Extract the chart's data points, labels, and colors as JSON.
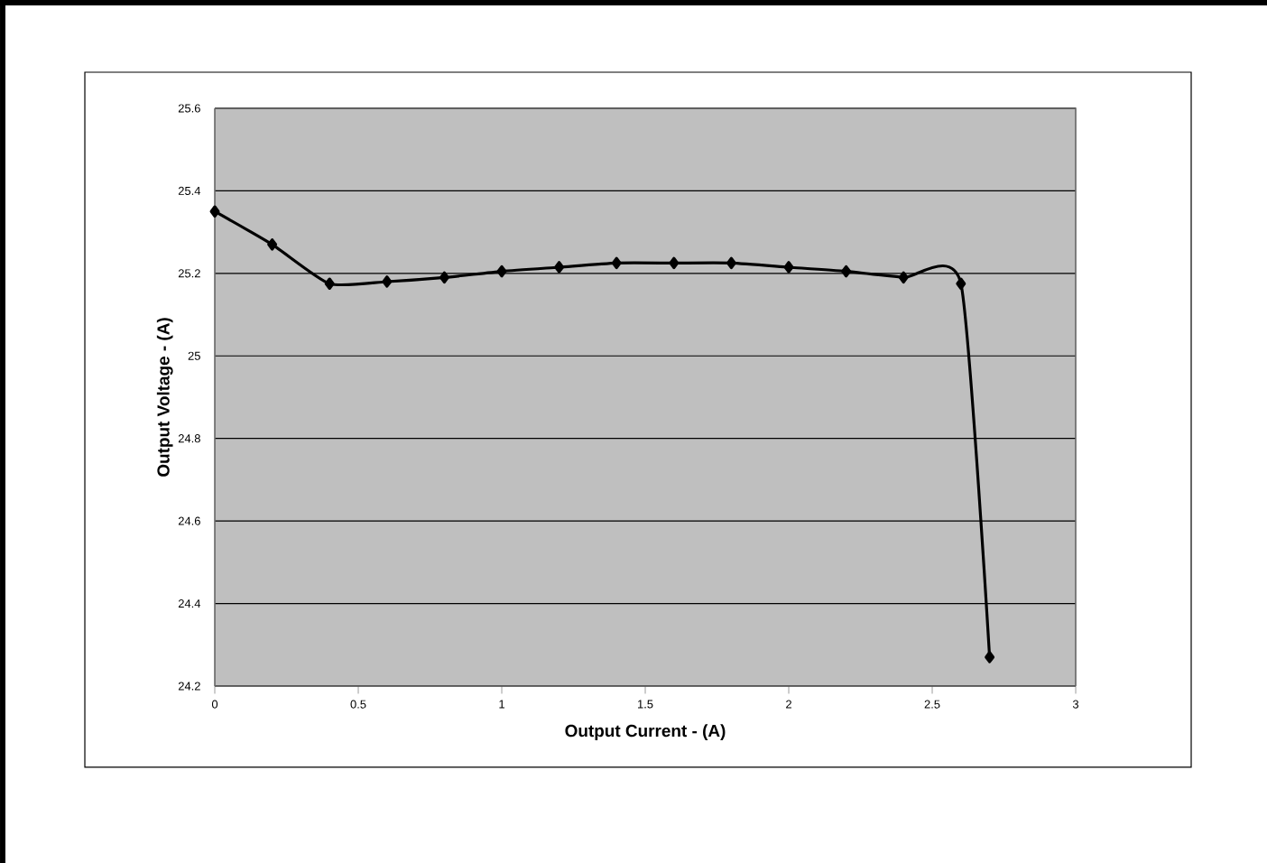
{
  "chart_data": {
    "type": "line",
    "xlabel": "Output Current - (A)",
    "ylabel": "Output Voltage - (A)",
    "x": [
      0,
      0.2,
      0.4,
      0.6,
      0.8,
      1.0,
      1.2,
      1.4,
      1.6,
      1.8,
      2.0,
      2.2,
      2.4,
      2.6,
      2.7
    ],
    "series": [
      {
        "color": "#000000",
        "values": [
          25.35,
          25.27,
          25.175,
          25.18,
          25.19,
          25.205,
          25.215,
          25.225,
          25.225,
          25.225,
          25.215,
          25.205,
          25.19,
          25.175,
          24.27
        ]
      }
    ],
    "xlim": [
      0,
      3
    ],
    "xticks": [
      0,
      0.5,
      1,
      1.5,
      2,
      2.5,
      3
    ],
    "ylim": [
      24.2,
      25.6
    ],
    "yticks": [
      24.2,
      24.4,
      24.6,
      24.8,
      25,
      25.2,
      25.4,
      25.6
    ],
    "grid": "y",
    "marker": "diamond",
    "line_style": "solid"
  }
}
